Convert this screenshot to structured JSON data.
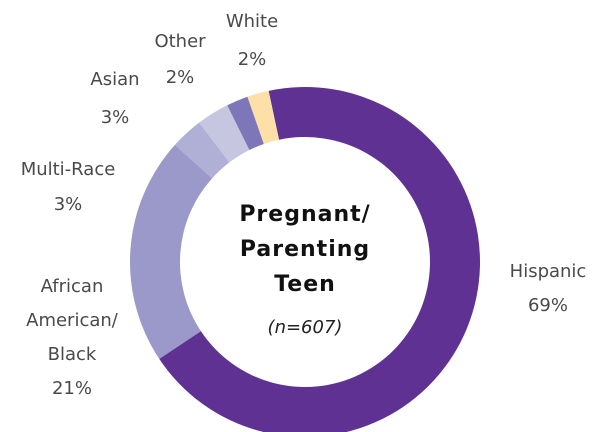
{
  "chart_data": {
    "type": "donut",
    "title": "Pregnant/ Parenting Teen",
    "subtitle": "(n=607)",
    "categories": [
      "Hispanic",
      "African American/ Black",
      "Multi-Race",
      "Asian",
      "Other",
      "White"
    ],
    "values": [
      69,
      21,
      3,
      3,
      2,
      2
    ],
    "value_labels": [
      "69%",
      "21%",
      "3%",
      "3%",
      "2%",
      "2%"
    ],
    "colors": [
      "#5e3192",
      "#9b99c9",
      "#b0afd5",
      "#c6c6e0",
      "#7d77b9",
      "#fde0a8"
    ]
  }
}
